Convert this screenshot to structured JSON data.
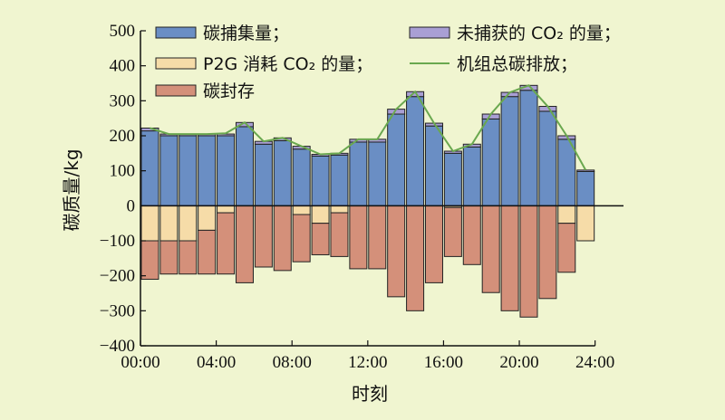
{
  "chart_data": {
    "type": "bar",
    "stacked": true,
    "xlabel": "时刻",
    "ylabel": "碳质量/kg",
    "ylim": [
      -400,
      500
    ],
    "yticks": [
      -400,
      -300,
      -200,
      -100,
      0,
      100,
      200,
      300,
      400,
      500
    ],
    "xticks": [
      "00:00",
      "04:00",
      "08:00",
      "12:00",
      "16:00",
      "20:00",
      "24:00"
    ],
    "grid": false,
    "legend_position": "top",
    "hours": [
      0.5,
      1.5,
      2.5,
      3.5,
      4.5,
      5.5,
      6.5,
      7.5,
      8.5,
      9.5,
      10.5,
      11.5,
      12.5,
      13.5,
      14.5,
      15.5,
      16.5,
      17.5,
      18.5,
      19.5,
      20.5,
      21.5,
      22.5,
      23.5
    ],
    "series": [
      {
        "key": "capture",
        "name": "碳捕集量；",
        "color": "#6a8ec4",
        "values": [
          214,
          200,
          200,
          200,
          200,
          226,
          176,
          186,
          162,
          142,
          145,
          182,
          182,
          262,
          312,
          228,
          150,
          168,
          248,
          312,
          330,
          270,
          190,
          98
        ]
      },
      {
        "key": "uncaptured",
        "name": "未捕获的 CO₂ 的量；",
        "color": "#a99fd4",
        "values": [
          8,
          5,
          5,
          5,
          5,
          12,
          8,
          8,
          8,
          5,
          5,
          8,
          8,
          14,
          14,
          8,
          6,
          8,
          14,
          12,
          14,
          14,
          10,
          4
        ]
      },
      {
        "key": "p2g",
        "name": "P2G 消耗 CO₂ 的量；",
        "color": "#f6dca8",
        "values": [
          -100,
          -100,
          -100,
          -70,
          -20,
          0,
          0,
          0,
          -25,
          -50,
          -20,
          0,
          0,
          0,
          0,
          0,
          -5,
          0,
          0,
          0,
          0,
          0,
          -50,
          -100
        ]
      },
      {
        "key": "storage",
        "name": "碳封存",
        "color": "#d4907a",
        "values": [
          -110,
          -95,
          -95,
          -125,
          -175,
          -220,
          -175,
          -185,
          -135,
          -90,
          -125,
          -180,
          -180,
          -260,
          -300,
          -220,
          -140,
          -168,
          -248,
          -300,
          -318,
          -265,
          -140,
          0
        ]
      }
    ],
    "line": {
      "name": "机组总碳排放；",
      "color": "#6aa84f",
      "values": [
        222,
        205,
        205,
        205,
        207,
        238,
        184,
        194,
        170,
        147,
        150,
        190,
        190,
        276,
        326,
        236,
        156,
        176,
        262,
        324,
        344,
        284,
        200,
        102
      ]
    }
  }
}
